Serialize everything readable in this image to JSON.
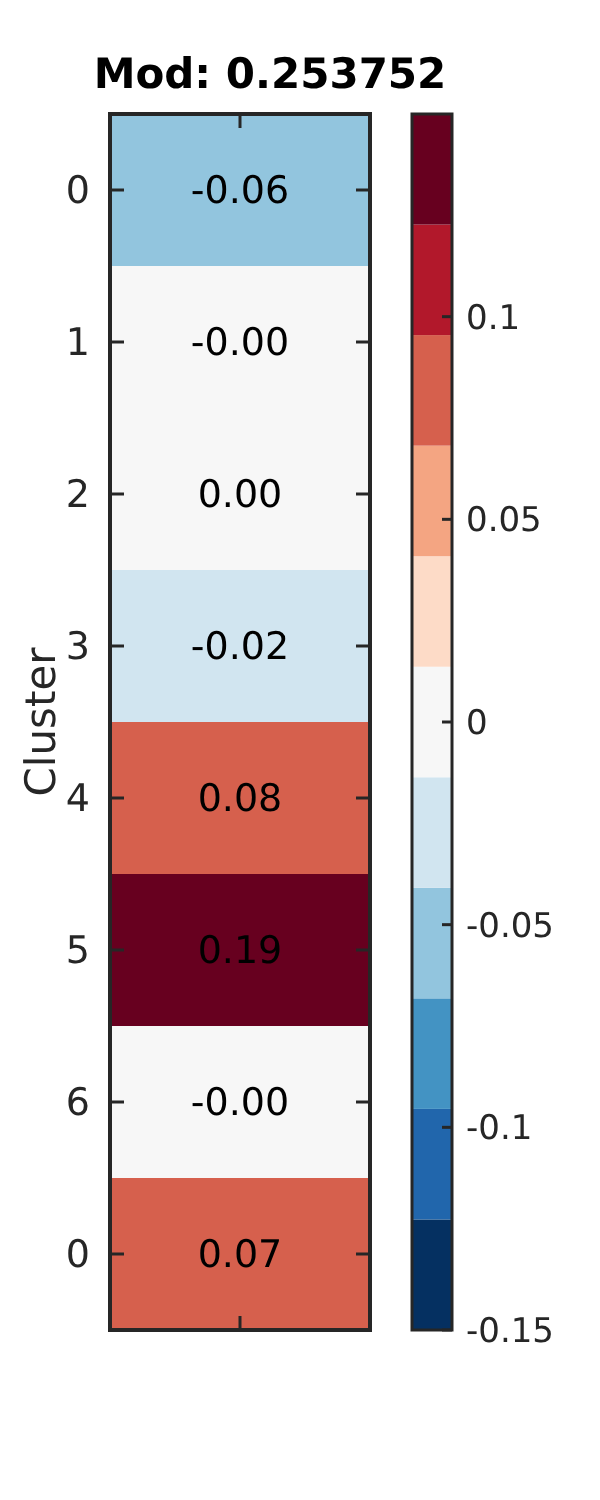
{
  "chart_data": {
    "type": "heatmap",
    "title": "Mod: 0.253752",
    "ylabel": "Cluster",
    "categories": [
      null
    ],
    "y_categories": [
      "0",
      "1",
      "2",
      "3",
      "4",
      "5",
      "6",
      "0"
    ],
    "cells": [
      [
        -0.06
      ],
      [
        0
      ],
      [
        0
      ],
      [
        -0.02
      ],
      [
        0.08
      ],
      [
        0.19
      ],
      [
        0
      ],
      [
        0.07
      ]
    ],
    "cell_labels": [
      [
        "-0.06"
      ],
      [
        "-0.00"
      ],
      [
        "0.00"
      ],
      [
        "-0.02"
      ],
      [
        "0.08"
      ],
      [
        "0.19"
      ],
      [
        "-0.00"
      ],
      [
        "0.07"
      ]
    ],
    "clim": [
      -0.15,
      0.15
    ],
    "cticks": [
      -0.15,
      -0.1,
      -0.05,
      0,
      0.05,
      0.1
    ]
  }
}
